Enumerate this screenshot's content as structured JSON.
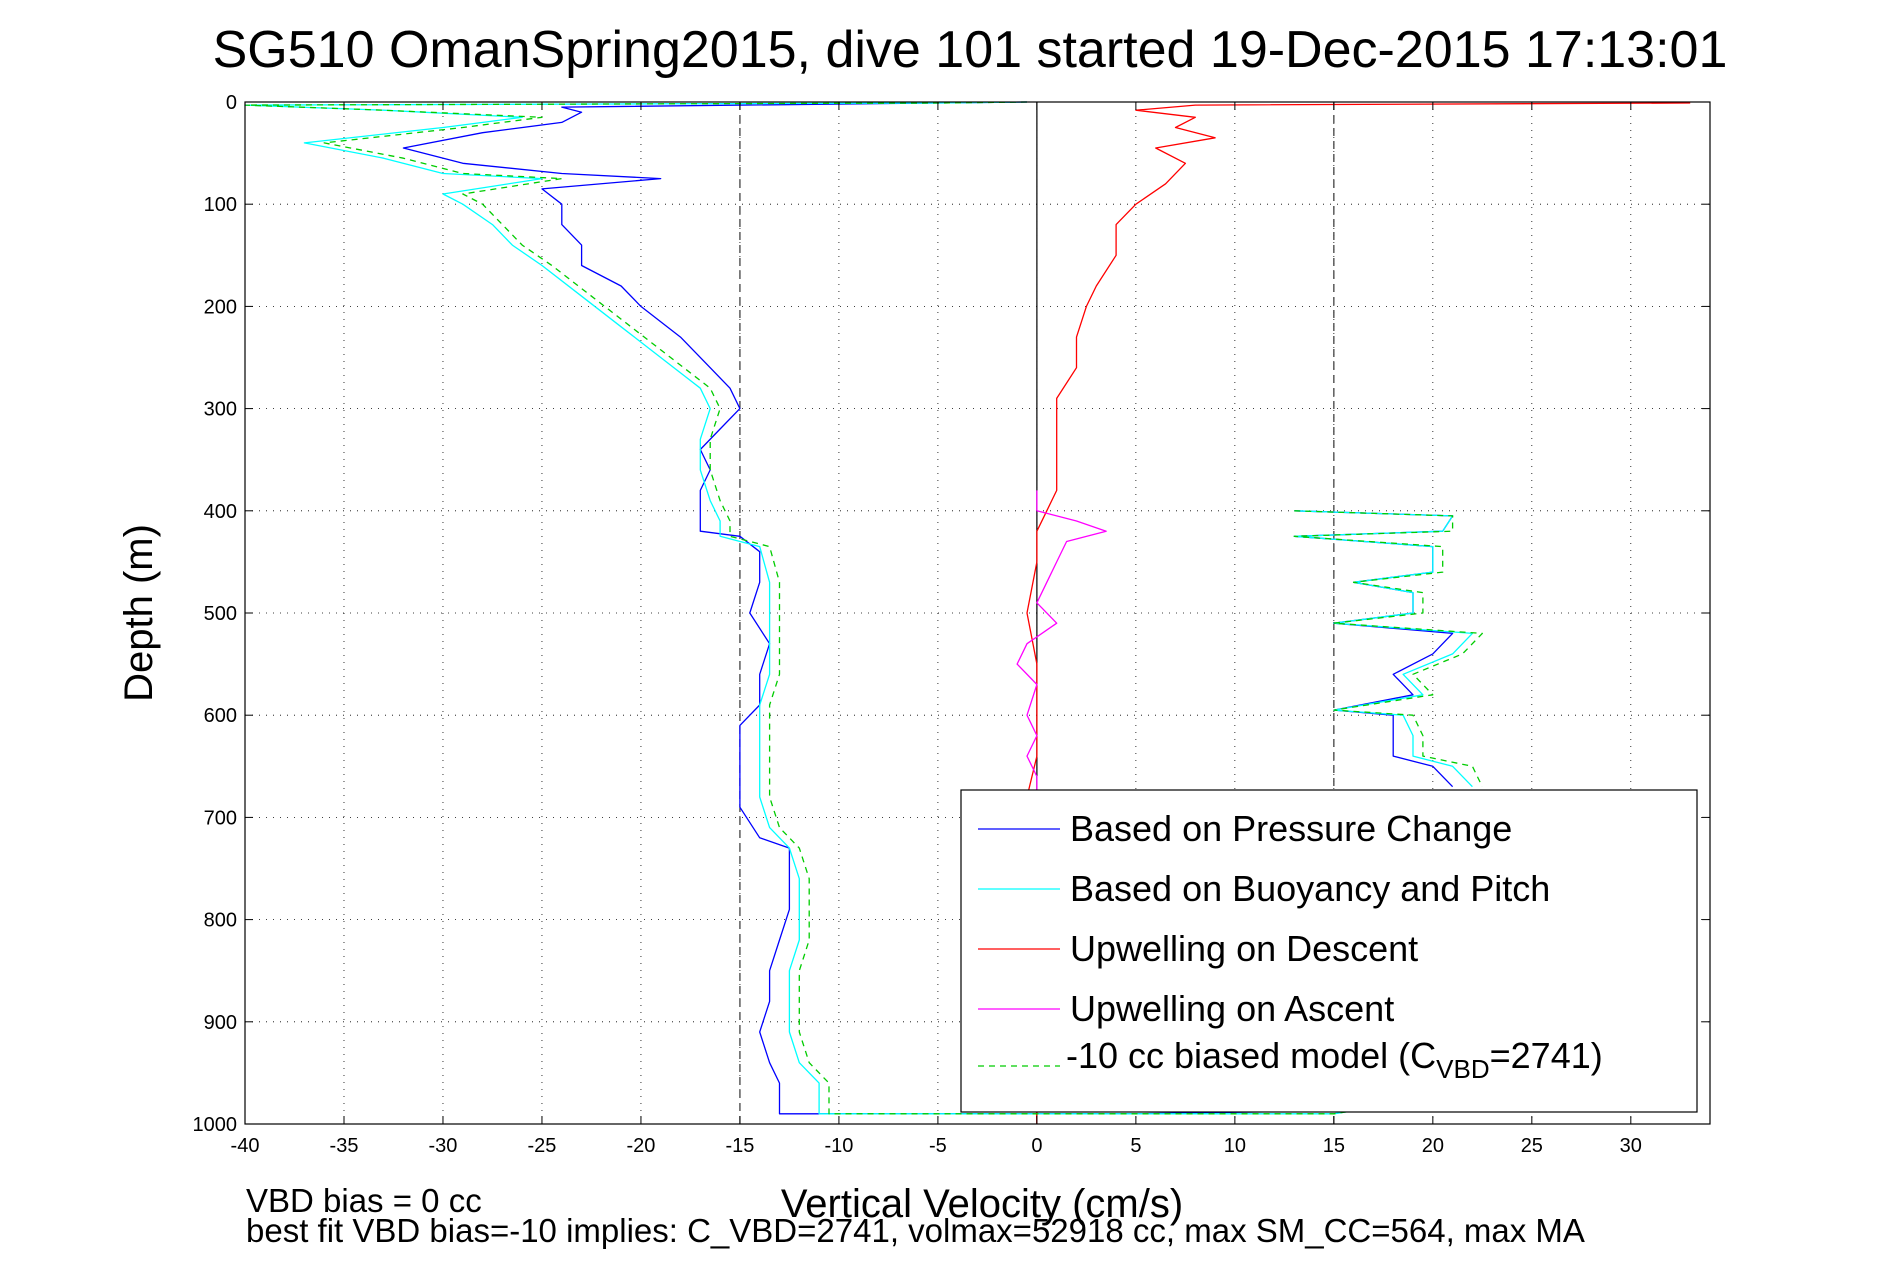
{
  "chart_data": {
    "type": "line",
    "title": "SG510 OmanSpring2015, dive 101 started 19-Dec-2015 17:13:01",
    "xlabel": "Vertical Velocity (cm/s)",
    "ylabel": "Depth (m)",
    "xlim": [
      -40,
      34
    ],
    "ylim": [
      0,
      1000
    ],
    "y_reversed": true,
    "grid": true,
    "x_ticks": [
      "-40",
      "-35",
      "-30",
      "-25",
      "-20",
      "-15",
      "-10",
      "-5",
      "0",
      "5",
      "10",
      "15",
      "20",
      "25",
      "30"
    ],
    "y_ticks": [
      "0",
      "100",
      "200",
      "300",
      "400",
      "500",
      "600",
      "700",
      "800",
      "900",
      "1000"
    ],
    "reference_lines": {
      "x_dashed": [
        -15,
        15
      ],
      "x_solid": [
        0
      ]
    },
    "legend_position": "bottom-right",
    "series": [
      {
        "name": "Based on Pressure Change",
        "color": "#0000ff",
        "style": "solid",
        "points": [
          [
            -0.5,
            0
          ],
          [
            -5,
            1
          ],
          [
            -24,
            5
          ],
          [
            -23,
            10
          ],
          [
            -24,
            20
          ],
          [
            -28,
            30
          ],
          [
            -32,
            45
          ],
          [
            -29,
            60
          ],
          [
            -24,
            70
          ],
          [
            -19,
            75
          ],
          [
            -25,
            85
          ],
          [
            -24,
            100
          ],
          [
            -24,
            120
          ],
          [
            -23,
            140
          ],
          [
            -23,
            160
          ],
          [
            -21,
            180
          ],
          [
            -20,
            200
          ],
          [
            -18,
            230
          ],
          [
            -16.5,
            260
          ],
          [
            -15.5,
            280
          ],
          [
            -15,
            300
          ],
          [
            -16,
            320
          ],
          [
            -17,
            340
          ],
          [
            -16.5,
            360
          ],
          [
            -17,
            380
          ],
          [
            -17,
            400
          ],
          [
            -17,
            420
          ],
          [
            -15,
            425
          ],
          [
            -14,
            440
          ],
          [
            -14,
            470
          ],
          [
            -14.5,
            500
          ],
          [
            -13.5,
            530
          ],
          [
            -14,
            560
          ],
          [
            -14,
            590
          ],
          [
            -15,
            610
          ],
          [
            -15,
            630
          ],
          [
            -15,
            660
          ],
          [
            -15,
            690
          ],
          [
            -14,
            720
          ],
          [
            -12.5,
            730
          ],
          [
            -12.5,
            760
          ],
          [
            -12.5,
            790
          ],
          [
            -13,
            820
          ],
          [
            -13.5,
            850
          ],
          [
            -13.5,
            880
          ],
          [
            -14,
            910
          ],
          [
            -13.5,
            940
          ],
          [
            -13,
            960
          ],
          [
            -13,
            990
          ],
          [
            -11,
            990
          ],
          [
            5,
            990
          ],
          [
            15,
            987
          ],
          [
            16,
            985
          ]
        ]
      },
      {
        "name": "Based on Buoyancy and Pitch",
        "color": "#00ffff",
        "style": "solid",
        "points": [
          [
            -0.5,
            0
          ],
          [
            -5,
            1
          ],
          [
            -40,
            3
          ],
          [
            -33,
            8
          ],
          [
            -26,
            15
          ],
          [
            -30,
            25
          ],
          [
            -37,
            40
          ],
          [
            -33,
            55
          ],
          [
            -30,
            70
          ],
          [
            -25,
            75
          ],
          [
            -30,
            90
          ],
          [
            -29,
            100
          ],
          [
            -27.5,
            120
          ],
          [
            -26.5,
            140
          ],
          [
            -25,
            160
          ],
          [
            -23,
            190
          ],
          [
            -21,
            220
          ],
          [
            -19,
            250
          ],
          [
            -17,
            280
          ],
          [
            -16.5,
            300
          ],
          [
            -17,
            330
          ],
          [
            -17,
            360
          ],
          [
            -16.5,
            390
          ],
          [
            -16,
            410
          ],
          [
            -16,
            425
          ],
          [
            -14,
            435
          ],
          [
            -13.5,
            470
          ],
          [
            -13.5,
            500
          ],
          [
            -13.5,
            530
          ],
          [
            -13.5,
            560
          ],
          [
            -14,
            590
          ],
          [
            -14,
            620
          ],
          [
            -14,
            650
          ],
          [
            -14,
            680
          ],
          [
            -13.5,
            710
          ],
          [
            -12.5,
            730
          ],
          [
            -12,
            760
          ],
          [
            -12,
            790
          ],
          [
            -12,
            820
          ],
          [
            -12.5,
            850
          ],
          [
            -12.5,
            880
          ],
          [
            -12.5,
            910
          ],
          [
            -12,
            940
          ],
          [
            -11,
            960
          ],
          [
            -11,
            990
          ],
          [
            15,
            990
          ],
          [
            16,
            987
          ]
        ]
      },
      {
        "name": "Upwelling on Descent",
        "color": "#ff0000",
        "style": "solid",
        "points": [
          [
            33,
            1
          ],
          [
            8,
            3
          ],
          [
            5,
            8
          ],
          [
            8,
            15
          ],
          [
            7,
            25
          ],
          [
            9,
            35
          ],
          [
            6,
            45
          ],
          [
            7.5,
            60
          ],
          [
            6.5,
            80
          ],
          [
            5,
            100
          ],
          [
            4,
            120
          ],
          [
            4,
            150
          ],
          [
            3,
            180
          ],
          [
            2.5,
            200
          ],
          [
            2,
            230
          ],
          [
            2,
            260
          ],
          [
            1,
            290
          ],
          [
            1,
            320
          ],
          [
            1,
            350
          ],
          [
            1,
            380
          ],
          [
            0.5,
            400
          ],
          [
            0,
            420
          ],
          [
            0,
            450
          ],
          [
            -0.5,
            500
          ],
          [
            0,
            550
          ],
          [
            0,
            600
          ],
          [
            0,
            640
          ],
          [
            -0.5,
            680
          ],
          [
            0,
            1000
          ]
        ]
      },
      {
        "name": "Upwelling on Ascent",
        "color": "#ff00ff",
        "style": "solid",
        "points": [
          [
            0,
            380
          ],
          [
            0,
            400
          ],
          [
            2,
            410
          ],
          [
            3.5,
            420
          ],
          [
            1.5,
            430
          ],
          [
            1,
            450
          ],
          [
            0.5,
            470
          ],
          [
            0,
            490
          ],
          [
            1,
            510
          ],
          [
            -0.5,
            530
          ],
          [
            -1,
            550
          ],
          [
            0,
            570
          ],
          [
            -0.5,
            600
          ],
          [
            0,
            620
          ],
          [
            -0.5,
            640
          ],
          [
            0,
            660
          ],
          [
            0,
            680
          ]
        ]
      },
      {
        "name": "-10 cc biased model (C_VBD=2741)",
        "color": "#00cc00",
        "style": "dashed",
        "points": [
          [
            -0.5,
            0
          ],
          [
            -5,
            1
          ],
          [
            -40,
            3
          ],
          [
            -33,
            8
          ],
          [
            -25,
            15
          ],
          [
            -29,
            25
          ],
          [
            -36,
            40
          ],
          [
            -32,
            55
          ],
          [
            -29,
            70
          ],
          [
            -24,
            75
          ],
          [
            -29,
            90
          ],
          [
            -28,
            100
          ],
          [
            -27,
            120
          ],
          [
            -26,
            140
          ],
          [
            -24.5,
            160
          ],
          [
            -22.5,
            190
          ],
          [
            -20.5,
            220
          ],
          [
            -18.5,
            250
          ],
          [
            -16.5,
            280
          ],
          [
            -16,
            300
          ],
          [
            -16.5,
            330
          ],
          [
            -16.5,
            360
          ],
          [
            -16,
            390
          ],
          [
            -15.5,
            410
          ],
          [
            -15.5,
            425
          ],
          [
            -13.5,
            435
          ],
          [
            -13,
            470
          ],
          [
            -13,
            500
          ],
          [
            -13,
            530
          ],
          [
            -13,
            560
          ],
          [
            -13.5,
            590
          ],
          [
            -13.5,
            620
          ],
          [
            -13.5,
            650
          ],
          [
            -13.5,
            680
          ],
          [
            -13,
            710
          ],
          [
            -12,
            730
          ],
          [
            -11.5,
            760
          ],
          [
            -11.5,
            790
          ],
          [
            -11.5,
            820
          ],
          [
            -12,
            850
          ],
          [
            -12,
            880
          ],
          [
            -12,
            910
          ],
          [
            -11.5,
            940
          ],
          [
            -10.5,
            960
          ],
          [
            -10.5,
            990
          ],
          [
            15,
            990
          ],
          [
            16,
            987
          ]
        ]
      },
      {
        "name": "Based on Pressure Change",
        "color": "#0000ff",
        "style": "solid",
        "points": [
          [
            13,
            400
          ],
          [
            21,
            405
          ],
          [
            20.5,
            420
          ],
          [
            13,
            425
          ],
          [
            20,
            435
          ],
          [
            20,
            460
          ],
          [
            16,
            470
          ],
          [
            19,
            480
          ],
          [
            19,
            500
          ],
          [
            15,
            510
          ],
          [
            21,
            520
          ],
          [
            20,
            540
          ],
          [
            18,
            560
          ],
          [
            19,
            580
          ],
          [
            15,
            595
          ],
          [
            18,
            600
          ],
          [
            18,
            620
          ],
          [
            18,
            640
          ],
          [
            20,
            650
          ],
          [
            21,
            670
          ]
        ]
      },
      {
        "name": "Based on Buoyancy and Pitch",
        "color": "#00ffff",
        "style": "solid",
        "points": [
          [
            13,
            400
          ],
          [
            21,
            405
          ],
          [
            20.5,
            420
          ],
          [
            13,
            425
          ],
          [
            20,
            435
          ],
          [
            20,
            460
          ],
          [
            16,
            470
          ],
          [
            19,
            480
          ],
          [
            19,
            500
          ],
          [
            15,
            510
          ],
          [
            22,
            520
          ],
          [
            21,
            540
          ],
          [
            18.5,
            560
          ],
          [
            19.5,
            580
          ],
          [
            15,
            595
          ],
          [
            18.5,
            600
          ],
          [
            19,
            620
          ],
          [
            19,
            640
          ],
          [
            21,
            650
          ],
          [
            22,
            670
          ]
        ]
      },
      {
        "name": "-10 cc biased model (C_VBD=2741)",
        "color": "#00cc00",
        "style": "dashed",
        "points": [
          [
            13,
            400
          ],
          [
            21,
            405
          ],
          [
            21,
            420
          ],
          [
            13,
            425
          ],
          [
            20.5,
            435
          ],
          [
            20.5,
            460
          ],
          [
            16,
            470
          ],
          [
            19.5,
            480
          ],
          [
            19.5,
            500
          ],
          [
            15,
            510
          ],
          [
            22.5,
            520
          ],
          [
            21.5,
            540
          ],
          [
            19,
            560
          ],
          [
            20,
            580
          ],
          [
            15,
            595
          ],
          [
            19,
            600
          ],
          [
            19.5,
            620
          ],
          [
            19.5,
            640
          ],
          [
            22,
            650
          ],
          [
            22.5,
            670
          ]
        ]
      }
    ],
    "legend": [
      {
        "label": "Based on Pressure Change",
        "color": "#0000ff",
        "style": "solid"
      },
      {
        "label": "Based on Buoyancy and Pitch",
        "color": "#00ffff",
        "style": "solid"
      },
      {
        "label": "Upwelling on Descent",
        "color": "#ff0000",
        "style": "solid"
      },
      {
        "label": "Upwelling on Ascent",
        "color": "#ff00ff",
        "style": "solid"
      },
      {
        "label_prefix": "-10 cc biased model (C",
        "label_sub": "VBD",
        "label_suffix": "=2741)",
        "color": "#00cc00",
        "style": "dashed"
      }
    ],
    "annotations": [
      "VBD bias = 0 cc",
      "best fit VBD bias=-10 implies: C_VBD=2741, volmax=52918 cc, max SM_CC=564, max MA"
    ]
  }
}
